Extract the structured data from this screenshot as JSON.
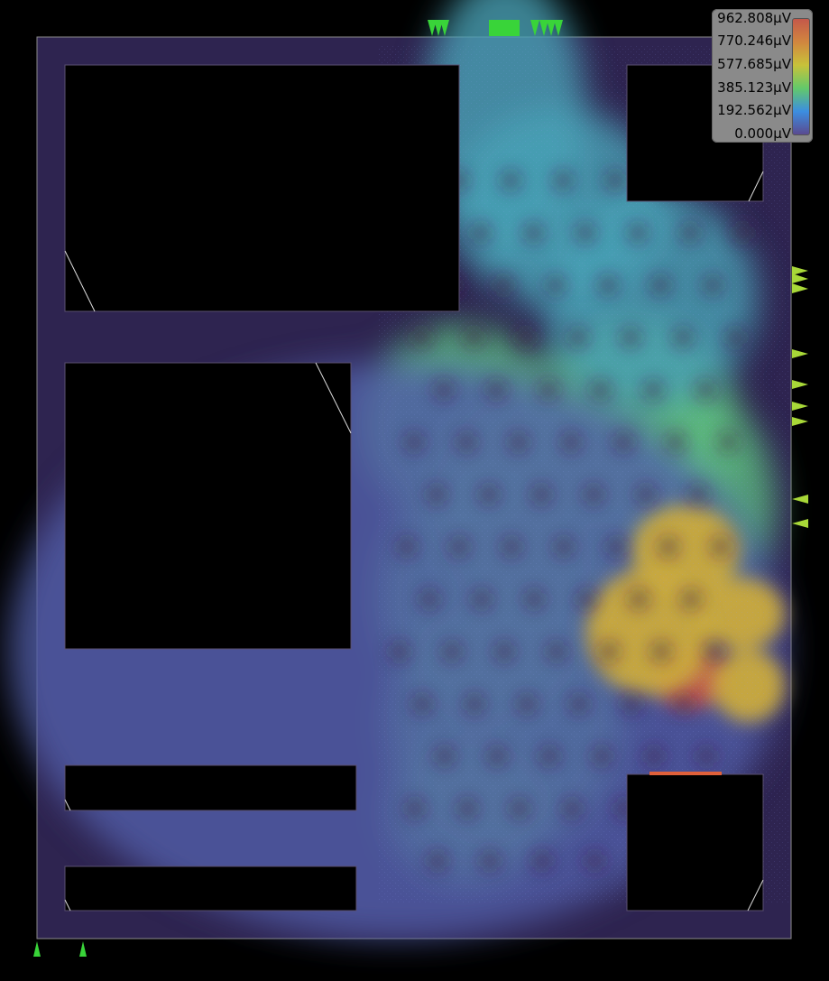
{
  "chart_data": {
    "type": "heatmap",
    "title": "",
    "unit": "µV",
    "colorbar": {
      "min": 0,
      "max": 962.808,
      "ticks": [
        "962.808µV",
        "770.246µV",
        "577.685µV",
        "385.123µV",
        "192.562µV",
        "0.000µV"
      ],
      "colors": [
        "#c4584a",
        "#d1863f",
        "#c8c23a",
        "#63c96a",
        "#3c8ee0",
        "#5a4a90"
      ]
    },
    "legend_position": "top-right",
    "hotspots": [
      {
        "region": "lower-right cluster",
        "value": 962.8
      },
      {
        "region": "right-middle cluster",
        "value": 650
      },
      {
        "region": "central diagonal band",
        "value": 350
      },
      {
        "region": "upper column",
        "value": 260
      },
      {
        "region": "background",
        "value": 60
      }
    ]
  },
  "colors": {
    "background": "#000000",
    "die_fill": "#2e2450",
    "die_border": "#8c8c8c",
    "macro_fill": "#000000",
    "pin": "#39d439"
  }
}
